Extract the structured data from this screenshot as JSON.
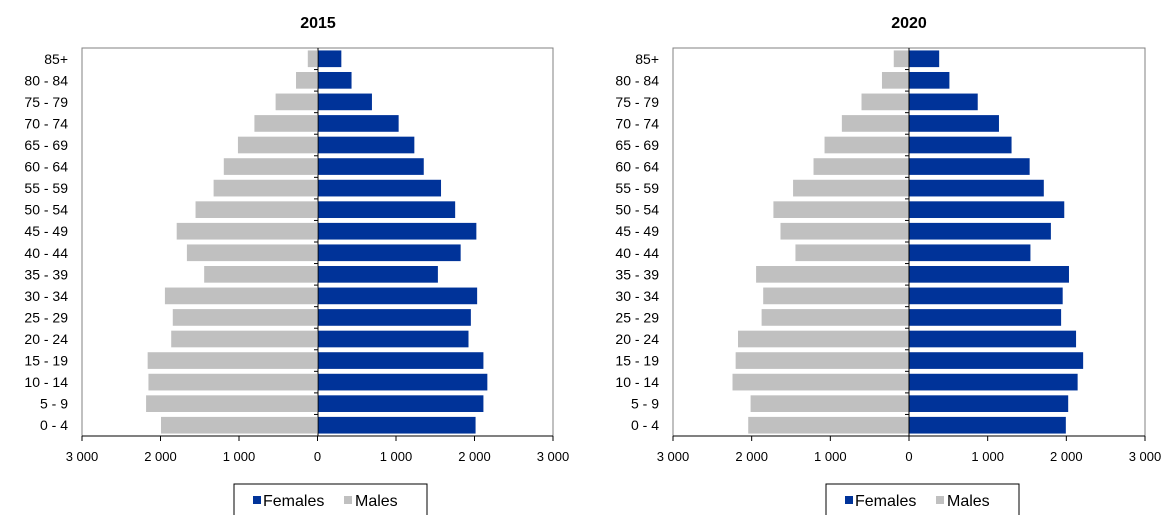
{
  "colors": {
    "females": "#003399",
    "males": "#c0c0c0",
    "axis": "#000000",
    "plot_border": "#808080"
  },
  "chart_data": [
    {
      "type": "bar",
      "orientation": "horizontal-pyramid",
      "title": "2015",
      "categories": [
        "0 - 4",
        "5 - 9",
        "10 - 14",
        "15 - 19",
        "20 - 24",
        "25 - 29",
        "30 - 34",
        "35 - 39",
        "40 - 44",
        "45 - 49",
        "50 - 54",
        "55 - 59",
        "60 - 64",
        "65 - 69",
        "70 - 74",
        "75 - 79",
        "80 - 84",
        "85+"
      ],
      "series": [
        {
          "name": "Females",
          "values": [
            2020,
            2120,
            2170,
            2120,
            1930,
            1960,
            2040,
            1540,
            1830,
            2030,
            1760,
            1580,
            1360,
            1240,
            1040,
            700,
            440,
            310
          ]
        },
        {
          "name": "Males",
          "values": [
            2000,
            2190,
            2160,
            2170,
            1870,
            1850,
            1950,
            1450,
            1670,
            1800,
            1560,
            1330,
            1200,
            1020,
            810,
            540,
            280,
            130
          ]
        }
      ],
      "xlim": [
        -3000,
        3000
      ],
      "xticks": [
        -3000,
        -2000,
        -1000,
        0,
        1000,
        2000,
        3000
      ],
      "xtick_labels": [
        "3 000",
        "2 000",
        "1 000",
        "0",
        "1 000",
        "2 000",
        "3 000"
      ],
      "legend": {
        "position": "bottom",
        "labels": [
          "Females",
          "Males"
        ]
      },
      "grid": false
    },
    {
      "type": "bar",
      "orientation": "horizontal-pyramid",
      "title": "2020",
      "categories": [
        "0 - 4",
        "5 - 9",
        "10 - 14",
        "15 - 19",
        "20 - 24",
        "25 - 29",
        "30 - 34",
        "35 - 39",
        "40 - 44",
        "45 - 49",
        "50 - 54",
        "55 - 59",
        "60 - 64",
        "65 - 69",
        "70 - 74",
        "75 - 79",
        "80 - 84",
        "85+"
      ],
      "series": [
        {
          "name": "Females",
          "values": [
            2000,
            2030,
            2150,
            2220,
            2130,
            1940,
            1960,
            2040,
            1550,
            1810,
            1980,
            1720,
            1540,
            1310,
            1150,
            880,
            520,
            390
          ]
        },
        {
          "name": "Males",
          "values": [
            2050,
            2020,
            2250,
            2210,
            2180,
            1880,
            1860,
            1950,
            1450,
            1640,
            1730,
            1480,
            1220,
            1080,
            860,
            610,
            350,
            200
          ]
        }
      ],
      "xlim": [
        -3000,
        3000
      ],
      "xticks": [
        -3000,
        -2000,
        -1000,
        0,
        1000,
        2000,
        3000
      ],
      "xtick_labels": [
        "3 000",
        "2 000",
        "1 000",
        "0",
        "1 000",
        "2 000",
        "3 000"
      ],
      "legend": {
        "position": "bottom",
        "labels": [
          "Females",
          "Males"
        ]
      },
      "grid": false
    }
  ]
}
